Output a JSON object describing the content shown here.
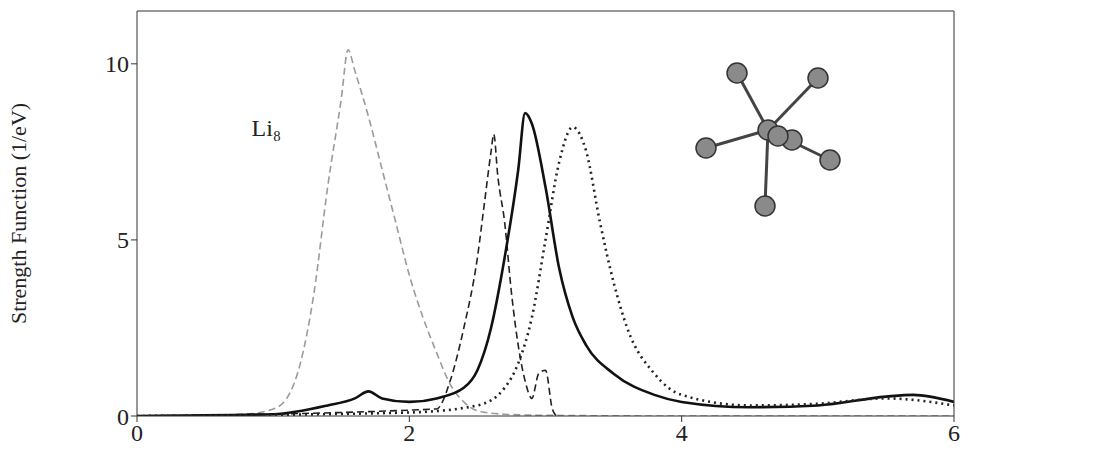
{
  "chart_data": {
    "type": "line",
    "y_label": "Strength Function (1/eV)",
    "annotations": [
      {
        "text": "Li₈",
        "x": 0.95,
        "y": 8.2
      }
    ],
    "xlim": [
      0,
      6
    ],
    "xticks": [
      0,
      2,
      4,
      6
    ],
    "ylim": [
      0,
      11.5
    ],
    "yticks": [
      0,
      5,
      10
    ],
    "grid": false,
    "series": [
      {
        "color": "#9a9a9a",
        "line_style": "dashed",
        "x": [
          0,
          0.5,
          0.8,
          1.0,
          1.1,
          1.2,
          1.3,
          1.4,
          1.5,
          1.55,
          1.6,
          1.7,
          1.8,
          1.9,
          2.0,
          2.1,
          2.2,
          2.3,
          2.4,
          2.5,
          2.7,
          3.0,
          4.0,
          6.0
        ],
        "values": [
          0,
          0,
          0.05,
          0.2,
          0.5,
          1.5,
          3.5,
          6.5,
          9,
          10.4,
          9.8,
          8.5,
          7,
          5.5,
          4,
          2.8,
          1.8,
          0.9,
          0.4,
          0.15,
          0.05,
          0.02,
          0,
          0
        ]
      },
      {
        "color": "#222222",
        "line_style": "dashed",
        "x": [
          0,
          2.2,
          2.3,
          2.4,
          2.5,
          2.55,
          2.6,
          2.62,
          2.65,
          2.7,
          2.75,
          2.8,
          2.85,
          2.9,
          2.95,
          3.0,
          3.05,
          3.08
        ],
        "values": [
          0,
          0.2,
          1.0,
          2.5,
          4.5,
          6,
          7.5,
          8,
          6.8,
          5.5,
          3.5,
          2.0,
          1.0,
          0.5,
          1.2,
          1.3,
          0.2,
          0
        ]
      },
      {
        "color": "#111111",
        "line_style": "solid",
        "x": [
          0,
          1.0,
          1.4,
          1.6,
          1.7,
          1.8,
          2.0,
          2.2,
          2.4,
          2.5,
          2.6,
          2.7,
          2.8,
          2.85,
          2.9,
          3.0,
          3.1,
          3.2,
          3.3,
          3.5,
          3.8,
          4.0,
          4.5,
          5.0,
          5.5,
          5.7,
          6.0
        ],
        "values": [
          0,
          0.05,
          0.3,
          0.5,
          0.7,
          0.5,
          0.4,
          0.5,
          0.8,
          1.3,
          2.5,
          4.5,
          7,
          8.6,
          8.3,
          6.5,
          4.2,
          2.8,
          2.0,
          1.2,
          0.6,
          0.4,
          0.25,
          0.3,
          0.55,
          0.6,
          0.4
        ]
      },
      {
        "color": "#222222",
        "line_style": "dotted",
        "x": [
          0,
          2.0,
          2.5,
          2.7,
          2.8,
          2.9,
          3.0,
          3.1,
          3.2,
          3.3,
          3.4,
          3.5,
          3.6,
          3.8,
          4.0,
          4.5,
          5.0,
          5.5,
          6.0
        ],
        "values": [
          0,
          0.1,
          0.3,
          0.8,
          1.5,
          2.8,
          5,
          7.2,
          8.2,
          7.5,
          5.5,
          3.8,
          2.5,
          1.2,
          0.6,
          0.3,
          0.35,
          0.5,
          0.3
        ]
      }
    ]
  }
}
